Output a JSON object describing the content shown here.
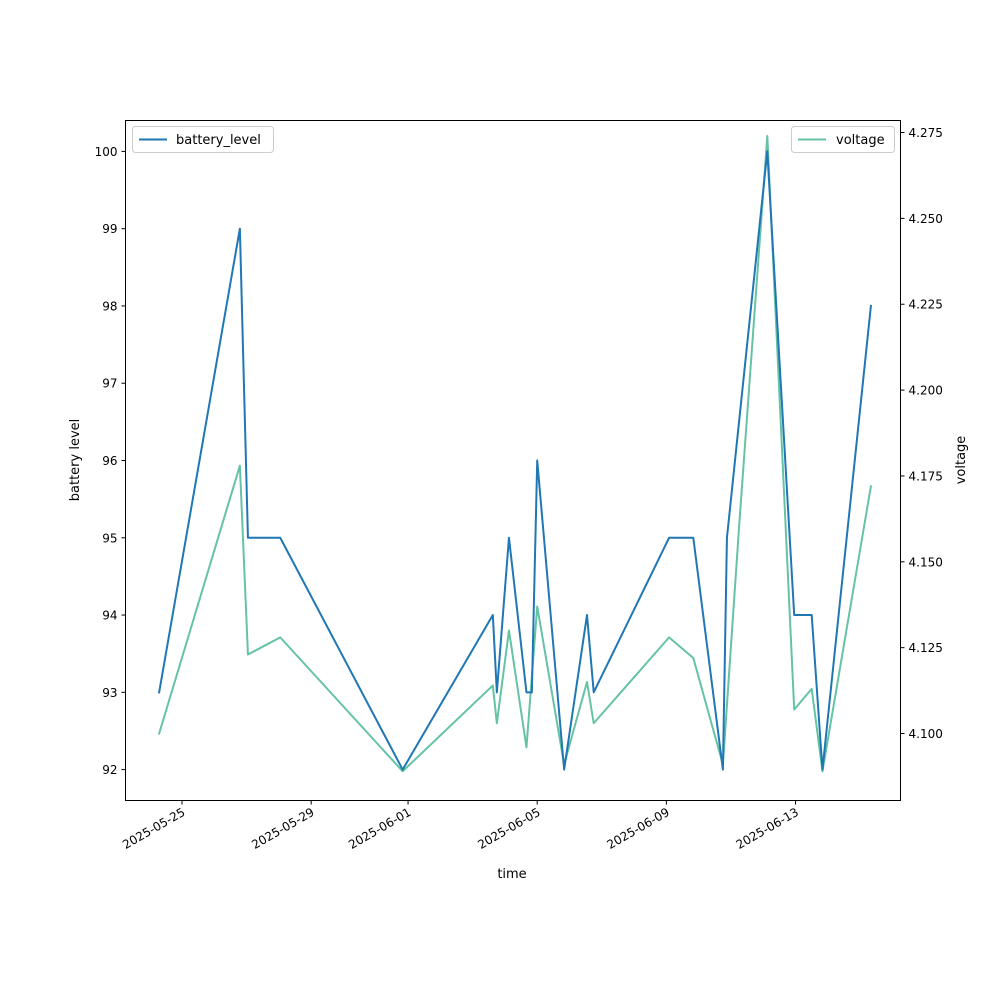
{
  "chart_data": {
    "type": "line",
    "xlabel": "time",
    "ylabel": "battery level",
    "y2label": "voltage",
    "grid": false,
    "y_axis": {
      "ylim": [
        91.6,
        100.4
      ],
      "ticks": [
        92,
        93,
        94,
        95,
        96,
        97,
        98,
        99,
        100
      ],
      "tick_labels": [
        "92",
        "93",
        "94",
        "95",
        "96",
        "97",
        "98",
        "99",
        "100"
      ]
    },
    "y2_axis": {
      "ylim": [
        4.0805,
        4.2785
      ],
      "ticks": [
        4.1,
        4.125,
        4.15,
        4.175,
        4.2,
        4.225,
        4.25,
        4.275
      ],
      "tick_labels": [
        "4.100",
        "4.125",
        "4.150",
        "4.175",
        "4.200",
        "4.225",
        "4.250",
        "4.275"
      ]
    },
    "x_axis": {
      "xlim": [
        "2025-05-23T06:00",
        "2025-06-16T06:00"
      ],
      "ticks": [
        "2025-05-25",
        "2025-05-29",
        "2025-06-01",
        "2025-06-05",
        "2025-06-09",
        "2025-06-13"
      ],
      "tick_labels": [
        "2025-05-25",
        "2025-05-29",
        "2025-06-01",
        "2025-06-05",
        "2025-06-09",
        "2025-06-13"
      ]
    },
    "series": [
      {
        "name": "battery_level",
        "axis": "left",
        "color": "#1f77b4",
        "legend_position": "upper left",
        "points": [
          {
            "x": "2025-05-24T07:00",
            "y": 93
          },
          {
            "x": "2025-05-26T19:00",
            "y": 99
          },
          {
            "x": "2025-05-27T01:00",
            "y": 95
          },
          {
            "x": "2025-05-28T01:00",
            "y": 95
          },
          {
            "x": "2025-05-31T20:00",
            "y": 92
          },
          {
            "x": "2025-06-03T15:00",
            "y": 94
          },
          {
            "x": "2025-06-03T18:00",
            "y": 93
          },
          {
            "x": "2025-06-04T03:00",
            "y": 95
          },
          {
            "x": "2025-06-04T16:00",
            "y": 93
          },
          {
            "x": "2025-06-04T20:00",
            "y": 93
          },
          {
            "x": "2025-06-05T00:00",
            "y": 96
          },
          {
            "x": "2025-06-05T20:00",
            "y": 92
          },
          {
            "x": "2025-06-06T13:00",
            "y": 94
          },
          {
            "x": "2025-06-06T18:00",
            "y": 93
          },
          {
            "x": "2025-06-09T02:00",
            "y": 95
          },
          {
            "x": "2025-06-09T20:00",
            "y": 95
          },
          {
            "x": "2025-06-10T18:00",
            "y": 92
          },
          {
            "x": "2025-06-10T21:00",
            "y": 95
          },
          {
            "x": "2025-06-12T03:00",
            "y": 100
          },
          {
            "x": "2025-06-12T23:00",
            "y": 94
          },
          {
            "x": "2025-06-13T12:00",
            "y": 94
          },
          {
            "x": "2025-06-13T16:00",
            "y": 93
          },
          {
            "x": "2025-06-13T20:00",
            "y": 92
          },
          {
            "x": "2025-06-15T08:00",
            "y": 98
          }
        ]
      },
      {
        "name": "voltage",
        "axis": "right",
        "color": "#66c2a5",
        "legend_position": "upper right",
        "points": [
          {
            "x": "2025-05-24T07:00",
            "y": 4.1
          },
          {
            "x": "2025-05-26T19:00",
            "y": 4.178
          },
          {
            "x": "2025-05-27T01:00",
            "y": 4.123
          },
          {
            "x": "2025-05-28T01:00",
            "y": 4.128
          },
          {
            "x": "2025-05-31T20:00",
            "y": 4.089
          },
          {
            "x": "2025-06-03T15:00",
            "y": 4.114
          },
          {
            "x": "2025-06-03T18:00",
            "y": 4.103
          },
          {
            "x": "2025-06-04T03:00",
            "y": 4.13
          },
          {
            "x": "2025-06-04T16:00",
            "y": 4.096
          },
          {
            "x": "2025-06-05T00:00",
            "y": 4.137
          },
          {
            "x": "2025-06-05T20:00",
            "y": 4.091
          },
          {
            "x": "2025-06-06T13:00",
            "y": 4.115
          },
          {
            "x": "2025-06-06T18:00",
            "y": 4.103
          },
          {
            "x": "2025-06-09T02:00",
            "y": 4.128
          },
          {
            "x": "2025-06-09T20:00",
            "y": 4.122
          },
          {
            "x": "2025-06-10T18:00",
            "y": 4.091
          },
          {
            "x": "2025-06-11T06:00",
            "y": 4.16
          },
          {
            "x": "2025-06-12T03:00",
            "y": 4.274
          },
          {
            "x": "2025-06-12T23:00",
            "y": 4.107
          },
          {
            "x": "2025-06-13T12:00",
            "y": 4.113
          },
          {
            "x": "2025-06-13T20:00",
            "y": 4.089
          },
          {
            "x": "2025-06-15T08:00",
            "y": 4.172
          }
        ]
      }
    ]
  }
}
